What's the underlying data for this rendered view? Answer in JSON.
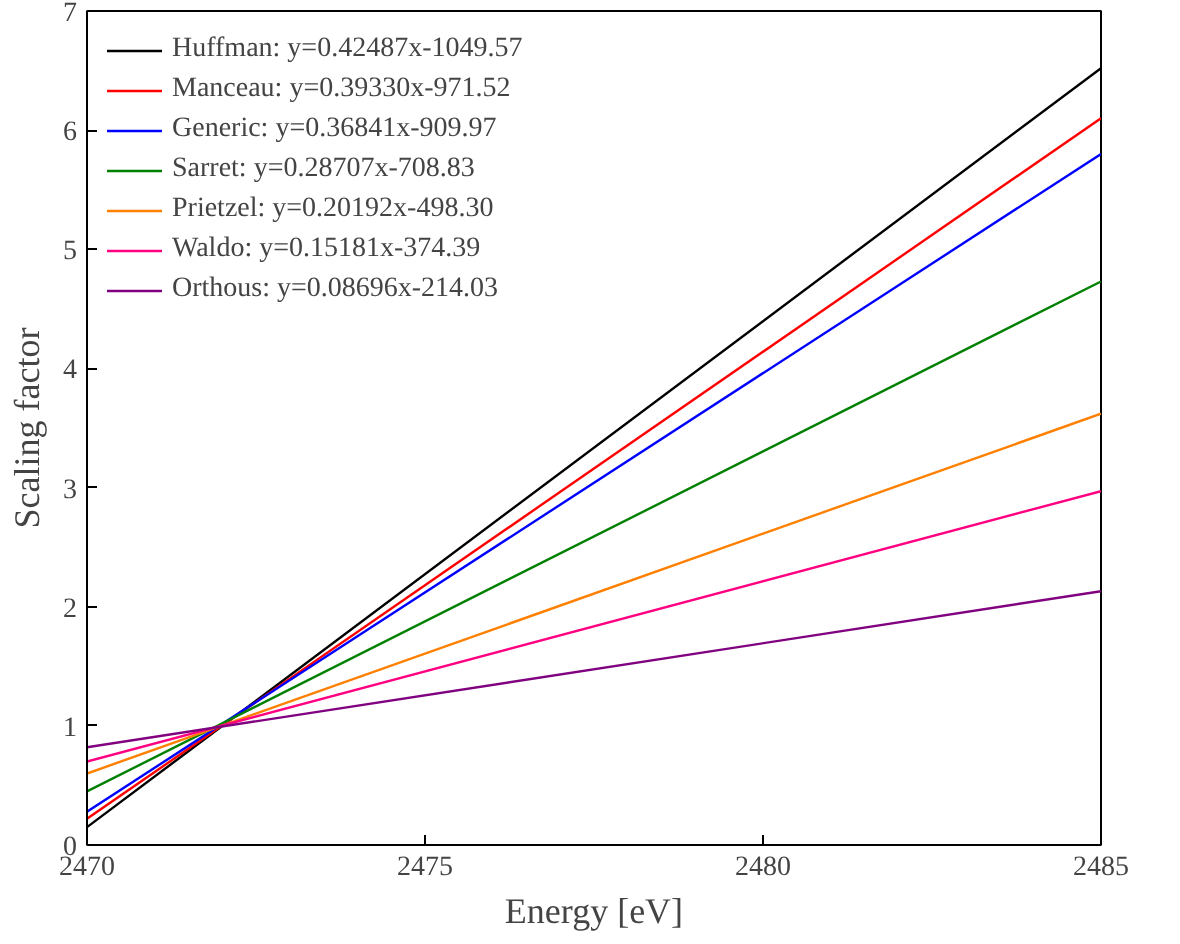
{
  "chart_data": {
    "type": "line",
    "xlabel": "Energy [eV]",
    "ylabel": "Scaling factor",
    "x": [
      2470,
      2485
    ],
    "xlim": [
      2470,
      2485
    ],
    "xticks": [
      2470,
      2475,
      2480,
      2485
    ],
    "ylim": [
      0,
      7
    ],
    "yticks": [
      0,
      1,
      2,
      3,
      4,
      5,
      6,
      7
    ],
    "grid": false,
    "legend": "top left",
    "marker": "none",
    "line_style": "solid",
    "series": [
      {
        "name": "Huffman: y=0.42487x-1049.57",
        "color": "#000000",
        "values": [
          0.15,
          6.52
        ]
      },
      {
        "name": "Manceau: y=0.39330x-971.52",
        "color": "#ff0000",
        "values": [
          0.22,
          6.1
        ]
      },
      {
        "name": "Generic: y=0.36841x-909.97",
        "color": "#0000ff",
        "values": [
          0.28,
          5.8
        ]
      },
      {
        "name": "Sarret: y=0.28707x-708.83",
        "color": "#008000",
        "values": [
          0.45,
          4.73
        ]
      },
      {
        "name": "Prietzel: y=0.20192x-498.30",
        "color": "#ff8000",
        "values": [
          0.6,
          3.62
        ]
      },
      {
        "name": "Waldo: y=0.15181x-374.39",
        "color": "#ff0080",
        "values": [
          0.7,
          2.97
        ]
      },
      {
        "name": "Orthous: y=0.08696x-214.03",
        "color": "#800080",
        "values": [
          0.82,
          2.13
        ]
      }
    ]
  }
}
